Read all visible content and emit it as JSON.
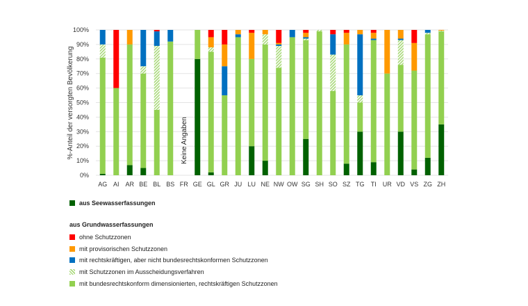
{
  "chart_data": {
    "type": "bar",
    "stacked": true,
    "ylabel": "%-Anteil der versorgten Bevölkerung",
    "ylim": [
      0,
      100
    ],
    "yticks": [
      "0%",
      "10%",
      "20%",
      "30%",
      "40%",
      "50%",
      "60%",
      "70%",
      "80%",
      "90%",
      "100%"
    ],
    "grid": true,
    "categories": [
      "AG",
      "AI",
      "AR",
      "BE",
      "BL",
      "BS",
      "FR",
      "GE",
      "GL",
      "GR",
      "JU",
      "LU",
      "NE",
      "NW",
      "OW",
      "SG",
      "SH",
      "SO",
      "SZ",
      "TG",
      "TI",
      "UR",
      "VD",
      "VS",
      "ZG",
      "ZH"
    ],
    "annotation": {
      "category": "FR",
      "text": "Keine Angaben"
    },
    "series": [
      {
        "name": "aus Seewasserfassungen",
        "color": "#006100",
        "values": [
          1,
          0,
          7,
          5,
          0,
          0,
          null,
          80,
          2,
          0,
          0,
          20,
          10,
          0,
          0,
          25,
          0,
          0,
          8,
          30,
          9,
          0,
          30,
          4,
          12,
          35
        ]
      },
      {
        "name": "mit bundesrechtskonform  dimensionierten, rechtskräftigen Schutzzonen",
        "color": "#92D050",
        "values": [
          80,
          60,
          83,
          65,
          45,
          92,
          null,
          20,
          83,
          55,
          95,
          60,
          80,
          74,
          95,
          68,
          99,
          58,
          82,
          20,
          84,
          70,
          46,
          68,
          85,
          64
        ]
      },
      {
        "name": "mit Schutzzonen  im Ausscheidungsverfahren",
        "color": "hatch",
        "values": [
          9,
          0,
          0,
          5,
          44,
          0,
          null,
          0,
          3,
          0,
          0,
          0,
          7,
          15,
          0,
          1,
          1,
          25,
          0,
          5,
          0,
          0,
          17,
          0,
          1,
          0.5
        ]
      },
      {
        "name": "mit rechtskräftigen, aber nicht bundesrechtskonformen  Schutzzonen",
        "color": "#0070C0",
        "values": [
          10,
          0,
          0,
          25,
          10,
          8,
          null,
          0,
          0,
          20,
          2,
          0,
          0,
          1,
          5,
          1,
          0,
          14,
          0,
          42,
          1,
          0,
          1,
          0,
          2,
          0
        ]
      },
      {
        "name": "mit provisorischen Schutzzonen",
        "color": "#FF9900",
        "values": [
          0,
          0,
          10,
          0,
          0,
          0,
          null,
          0,
          7,
          15,
          3,
          18,
          3,
          1,
          0,
          3,
          0,
          0,
          8,
          3,
          4,
          30,
          6,
          19,
          0,
          0.5
        ]
      },
      {
        "name": "ohne Schutzzonen",
        "color": "#FF0000",
        "values": [
          0,
          40,
          0,
          0,
          1,
          0,
          null,
          0,
          5,
          10,
          0,
          2,
          0,
          9,
          0,
          2,
          0,
          3,
          2,
          0,
          2,
          0,
          0,
          9,
          0,
          0
        ]
      }
    ]
  },
  "legend": {
    "group_heading": "aus Grundwasserfassungen"
  }
}
